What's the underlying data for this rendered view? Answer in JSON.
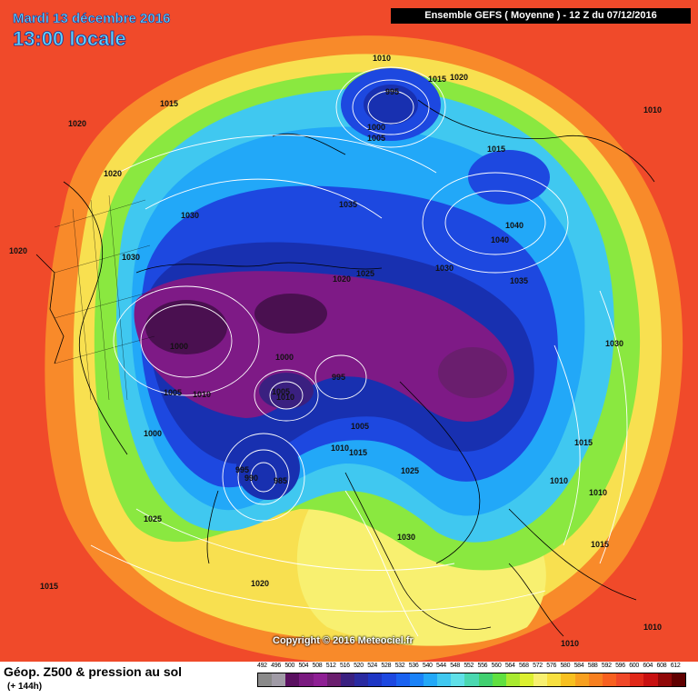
{
  "header": {
    "date": "Mardi 13 décembre 2016",
    "time": "13:00 locale",
    "model_run": "Ensemble GEFS  ( Moyenne )  -  12 Z du 07/12/2016"
  },
  "map": {
    "copyright": "Copyright © 2016 Meteociel.fr",
    "isobar_labels": [
      "1010",
      "995",
      "1015",
      "1020",
      "1000",
      "1005",
      "1015",
      "1010",
      "1015",
      "1020",
      "1020",
      "1030",
      "1035",
      "1040",
      "1040",
      "1035",
      "1020",
      "1025",
      "1030",
      "1030",
      "1000",
      "1005",
      "1010",
      "1000",
      "995",
      "1005",
      "1010",
      "1000",
      "1005",
      "1010",
      "1015",
      "1025",
      "995",
      "990",
      "985",
      "1025",
      "1030",
      "1015",
      "1010",
      "1010",
      "1015",
      "1015",
      "1020",
      "1010",
      "1010",
      "1020",
      "1030"
    ]
  },
  "footer": {
    "title": "Géop. Z500 & pression au sol",
    "subtitle": "(+ 144h)"
  },
  "legend": {
    "labels": [
      "492",
      "496",
      "500",
      "504",
      "508",
      "512",
      "516",
      "520",
      "524",
      "528",
      "532",
      "536",
      "540",
      "544",
      "548",
      "552",
      "556",
      "560",
      "564",
      "568",
      "572",
      "576",
      "580",
      "584",
      "588",
      "592",
      "596",
      "600",
      "604",
      "608",
      "612"
    ],
    "colors": [
      "#8a8a8a",
      "#a09ba6",
      "#5a1060",
      "#7a1a80",
      "#8e1f94",
      "#6a1e6e",
      "#3a2080",
      "#2a2aa0",
      "#1e36c4",
      "#1d48e0",
      "#1a62f0",
      "#1a82f8",
      "#22a8f8",
      "#40c8f0",
      "#60e0e8",
      "#4ad8b0",
      "#40d070",
      "#60e040",
      "#a8ea30",
      "#dcf030",
      "#f8f070",
      "#f8e040",
      "#f8c020",
      "#f8a020",
      "#f88020",
      "#f86020",
      "#f04828",
      "#e02818",
      "#c81010",
      "#900808",
      "#600000"
    ]
  },
  "map_colors": {
    "background": "#f04a2a",
    "ring_orange": "#f88a2a",
    "ring_yellow": "#f8e050",
    "ring_green": "#8ae840",
    "ring_cyan": "#40c8f0",
    "ring_blue": "#1f5ee8",
    "ring_navy": "#1830b0",
    "core_purple": "#7e1a86",
    "core_dark": "#4a1050"
  }
}
